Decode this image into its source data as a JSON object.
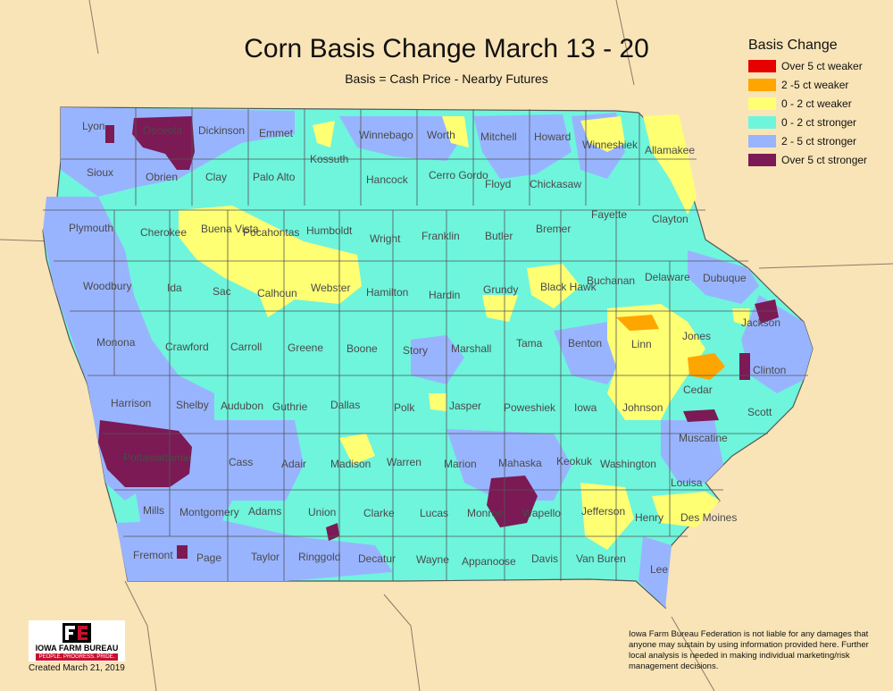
{
  "map": {
    "title": "Corn Basis Change March 13 - 20",
    "subtitle": "Basis = Cash Price - Nearby Futures",
    "created": "Created March 21, 2019",
    "disclaimer": "Iowa Farm Bureau Federation is not liable for any damages that anyone may sustain by using information provided here. Further local analysis is needed in making individual marketing/risk management decisions."
  },
  "legend": {
    "title": "Basis Change",
    "items": [
      {
        "label": "Over 5 ct weaker",
        "color": "#e60000"
      },
      {
        "label": "2 -5 ct weaker",
        "color": "#ffa500"
      },
      {
        "label": "0 - 2 ct weaker",
        "color": "#ffff73"
      },
      {
        "label": "0 - 2 ct stronger",
        "color": "#6ef5dc"
      },
      {
        "label": "2 - 5 ct stronger",
        "color": "#99b4ff"
      },
      {
        "label": "Over 5 ct stronger",
        "color": "#7b1a55"
      }
    ]
  },
  "logo": {
    "name": "IOWA FARM BUREAU",
    "tagline": "PEOPLE. PROGRESS. PRIDE."
  },
  "counties": [
    "Lyon",
    "Osceola",
    "Dickinson",
    "Emmet",
    "Winnebago",
    "Worth",
    "Mitchell",
    "Howard",
    "Winneshiek",
    "Allamakee",
    "Sioux",
    "Obrien",
    "Clay",
    "Palo Alto",
    "Kossuth",
    "Hancock",
    "Cerro Gordo",
    "Floyd",
    "Chickasaw",
    "Plymouth",
    "Cherokee",
    "Buena Vista",
    "Pocahontas",
    "Humboldt",
    "Wright",
    "Franklin",
    "Butler",
    "Bremer",
    "Fayette",
    "Clayton",
    "Woodbury",
    "Ida",
    "Sac",
    "Calhoun",
    "Webster",
    "Hamilton",
    "Hardin",
    "Grundy",
    "Black Hawk",
    "Buchanan",
    "Delaware",
    "Dubuque",
    "Monona",
    "Crawford",
    "Carroll",
    "Greene",
    "Boone",
    "Story",
    "Marshall",
    "Tama",
    "Benton",
    "Linn",
    "Jones",
    "Jackson",
    "Harrison",
    "Shelby",
    "Audubon",
    "Guthrie",
    "Dallas",
    "Polk",
    "Jasper",
    "Poweshiek",
    "Iowa",
    "Johnson",
    "Cedar",
    "Clinton",
    "Scott",
    "Pottawattamie",
    "Cass",
    "Adair",
    "Madison",
    "Warren",
    "Marion",
    "Mahaska",
    "Keokuk",
    "Washington",
    "Muscatine",
    "Louisa",
    "Mills",
    "Montgomery",
    "Adams",
    "Union",
    "Clarke",
    "Lucas",
    "Monroe",
    "Wapello",
    "Jefferson",
    "Henry",
    "Des Moines",
    "Fremont",
    "Page",
    "Taylor",
    "Ringgold",
    "Decatur",
    "Wayne",
    "Appanoose",
    "Davis",
    "Van Buren",
    "Lee"
  ]
}
